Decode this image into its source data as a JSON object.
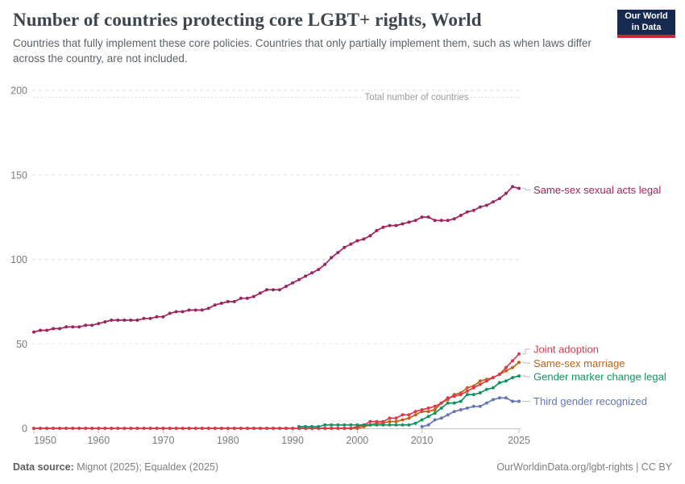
{
  "header": {
    "logo": {
      "line1": "Our World",
      "line2": "in Data",
      "bg": "#16294f",
      "bar": "#bf2e36"
    }
  },
  "footer": {
    "source_label": "Data source:",
    "source_value": "Mignot (2025); Equaldex (2025)",
    "right_text": "OurWorldinData.org/lgbt-rights | CC BY"
  },
  "chart_data": {
    "type": "line",
    "title": "Number of countries protecting core LGBT+ rights, World",
    "subtitle": "Countries that fully implement these core policies. Countries that only partially implement them, such as when laws differ across the country, are not included.",
    "x_label": "",
    "y_label": "",
    "ylim": [
      0,
      210
    ],
    "grid": "dashed-horizontal",
    "legend_position": "right-of-line-ends",
    "y_ticks": [
      0,
      50,
      100,
      150,
      200
    ],
    "x_ticks": [
      1950,
      1960,
      1970,
      1980,
      1990,
      2000,
      2010,
      2025
    ],
    "annotation": {
      "label": "Total number of countries",
      "value": 196
    },
    "x": [
      1950,
      1951,
      1952,
      1953,
      1954,
      1955,
      1956,
      1957,
      1958,
      1959,
      1960,
      1961,
      1962,
      1963,
      1964,
      1965,
      1966,
      1967,
      1968,
      1969,
      1970,
      1971,
      1972,
      1973,
      1974,
      1975,
      1976,
      1977,
      1978,
      1979,
      1980,
      1981,
      1982,
      1983,
      1984,
      1985,
      1986,
      1987,
      1988,
      1989,
      1990,
      1991,
      1992,
      1993,
      1994,
      1995,
      1996,
      1997,
      1998,
      1999,
      2000,
      2001,
      2002,
      2003,
      2004,
      2005,
      2006,
      2007,
      2008,
      2009,
      2010,
      2011,
      2012,
      2013,
      2014,
      2015,
      2016,
      2017,
      2018,
      2019,
      2020,
      2021,
      2022,
      2023,
      2024,
      2025
    ],
    "series": [
      {
        "name": "Same-sex sexual acts legal",
        "color": "#a0235d",
        "z": 5,
        "label_offset": 2,
        "values": [
          57,
          58,
          58,
          59,
          59,
          60,
          60,
          60,
          61,
          61,
          62,
          63,
          64,
          64,
          64,
          64,
          64,
          65,
          65,
          66,
          66,
          68,
          69,
          69,
          70,
          70,
          70,
          71,
          73,
          74,
          75,
          75,
          77,
          77,
          78,
          80,
          82,
          82,
          82,
          84,
          86,
          88,
          90,
          92,
          94,
          97,
          101,
          104,
          107,
          109,
          111,
          112,
          114,
          117,
          119,
          120,
          120,
          121,
          122,
          123,
          125,
          125,
          123,
          123,
          123,
          124,
          126,
          128,
          129,
          131,
          132,
          134,
          136,
          139,
          143,
          142
        ]
      },
      {
        "name": "Joint adoption",
        "color": "#de384f",
        "z": 2,
        "label_offset": -6,
        "values": [
          0,
          0,
          0,
          0,
          0,
          0,
          0,
          0,
          0,
          0,
          0,
          0,
          0,
          0,
          0,
          0,
          0,
          0,
          0,
          0,
          0,
          0,
          0,
          0,
          0,
          0,
          0,
          0,
          0,
          0,
          0,
          0,
          0,
          0,
          0,
          0,
          0,
          0,
          0,
          0,
          0,
          0,
          0,
          0,
          0,
          0,
          0,
          0,
          0,
          0,
          1,
          2,
          4,
          4,
          4,
          6,
          6,
          8,
          8,
          10,
          11,
          12,
          13,
          15,
          18,
          19,
          20,
          22,
          24,
          26,
          28,
          30,
          32,
          36,
          40,
          44
        ]
      },
      {
        "name": "Same-sex marriage",
        "color": "#b96418",
        "z": 1,
        "label_offset": 1,
        "values": [
          0,
          0,
          0,
          0,
          0,
          0,
          0,
          0,
          0,
          0,
          0,
          0,
          0,
          0,
          0,
          0,
          0,
          0,
          0,
          0,
          0,
          0,
          0,
          0,
          0,
          0,
          0,
          0,
          0,
          0,
          0,
          0,
          0,
          0,
          0,
          0,
          0,
          0,
          0,
          0,
          0,
          0,
          0,
          0,
          0,
          0,
          0,
          0,
          0,
          0,
          0,
          1,
          2,
          3,
          3,
          4,
          4,
          5,
          6,
          8,
          10,
          10,
          11,
          15,
          17,
          20,
          21,
          24,
          25,
          28,
          29,
          30,
          32,
          34,
          36,
          39
        ]
      },
      {
        "name": "Gender marker change legal",
        "color": "#129460",
        "z": 3,
        "label_offset": 1,
        "values": [
          null,
          null,
          null,
          null,
          null,
          null,
          null,
          null,
          null,
          null,
          null,
          null,
          null,
          null,
          null,
          null,
          null,
          null,
          null,
          null,
          null,
          null,
          null,
          null,
          null,
          null,
          null,
          null,
          null,
          null,
          null,
          null,
          null,
          null,
          null,
          null,
          null,
          null,
          null,
          null,
          null,
          1,
          1,
          1,
          1,
          2,
          2,
          2,
          2,
          2,
          2,
          2,
          2,
          2,
          2,
          2,
          2,
          2,
          2,
          3,
          5,
          7,
          9,
          12,
          15,
          15,
          16,
          20,
          20,
          21,
          23,
          24,
          27,
          28,
          30,
          31
        ]
      },
      {
        "name": "Third gender recognized",
        "color": "#6577b3",
        "z": 4,
        "label_offset": 0,
        "values": [
          null,
          null,
          null,
          null,
          null,
          null,
          null,
          null,
          null,
          null,
          null,
          null,
          null,
          null,
          null,
          null,
          null,
          null,
          null,
          null,
          null,
          null,
          null,
          null,
          null,
          null,
          null,
          null,
          null,
          null,
          null,
          null,
          null,
          null,
          null,
          null,
          null,
          null,
          null,
          null,
          null,
          null,
          null,
          null,
          null,
          null,
          null,
          null,
          null,
          null,
          null,
          null,
          null,
          null,
          null,
          null,
          null,
          null,
          null,
          null,
          1,
          2,
          5,
          6,
          8,
          10,
          11,
          12,
          13,
          13,
          15,
          17,
          18,
          18,
          16,
          16
        ]
      }
    ]
  }
}
